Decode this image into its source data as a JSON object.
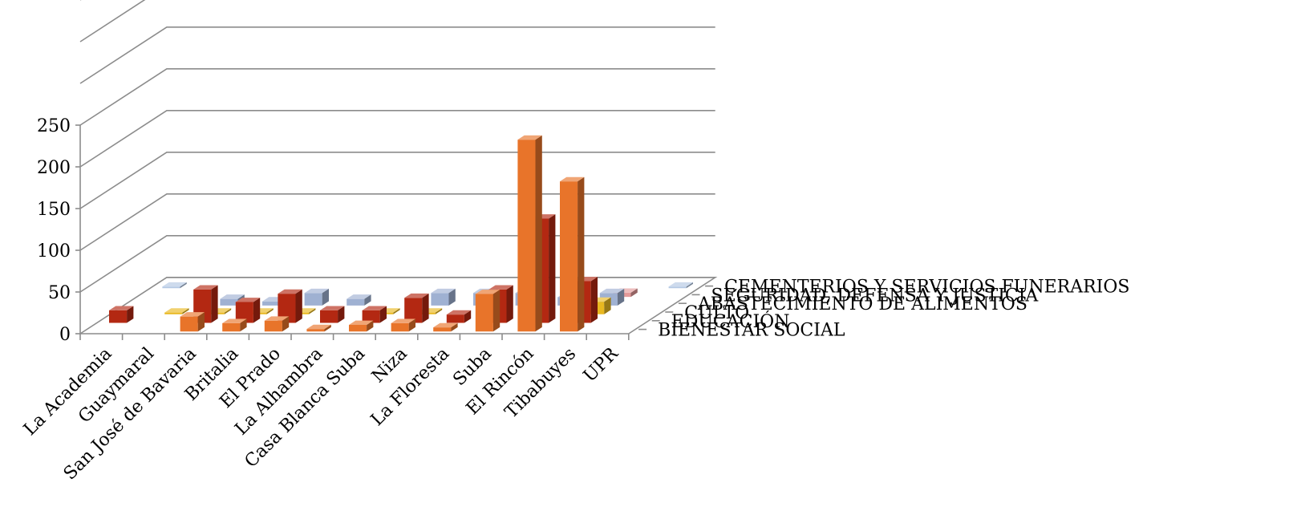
{
  "chart_data": {
    "type": "bar3d",
    "title": "",
    "ylim": [
      0,
      250
    ],
    "yticks": [
      0,
      50,
      100,
      150,
      200,
      250
    ],
    "grid": true,
    "legend": "none",
    "categories": [
      "La Academia",
      "Guaymaral",
      "San José de Bavaria",
      "Britalia",
      "El Prado",
      "La Alhambra",
      "Casa Blanca Suba",
      "Niza",
      "La Floresta",
      "Suba",
      "El Rincón",
      "Tibabuyes",
      "UPR"
    ],
    "series": [
      {
        "name": "BIENESTAR SOCIAL",
        "color": "#e8742a",
        "values": [
          0,
          0,
          18,
          10,
          13,
          3,
          8,
          10,
          5,
          45,
          230,
          180,
          0
        ]
      },
      {
        "name": "EDUCACIÓN",
        "color": "#b32812",
        "values": [
          15,
          0,
          40,
          25,
          35,
          15,
          15,
          30,
          10,
          40,
          125,
          50,
          0
        ]
      },
      {
        "name": "CULTO",
        "color": "#e9b820",
        "values": [
          0,
          2,
          2,
          2,
          2,
          0,
          2,
          2,
          0,
          0,
          0,
          15,
          0
        ]
      },
      {
        "name": "ABASTECIMIENTO DE ALIMENTOS",
        "color": "#9fb1d2",
        "values": [
          0,
          0,
          8,
          5,
          15,
          8,
          0,
          15,
          15,
          15,
          10,
          15,
          0
        ]
      },
      {
        "name": "SEGURIDAD, DEFENSA Y JUSTICIA",
        "color": "#e39a9a",
        "values": [
          0,
          0,
          0,
          0,
          0,
          0,
          0,
          0,
          0,
          0,
          0,
          5,
          0
        ]
      },
      {
        "name": "CEMENTERIOS Y SERVICIOS FUNERARIOS",
        "color": "#b4c8e4",
        "values": [
          2,
          0,
          0,
          0,
          0,
          0,
          0,
          0,
          0,
          0,
          0,
          0,
          2
        ]
      }
    ]
  }
}
